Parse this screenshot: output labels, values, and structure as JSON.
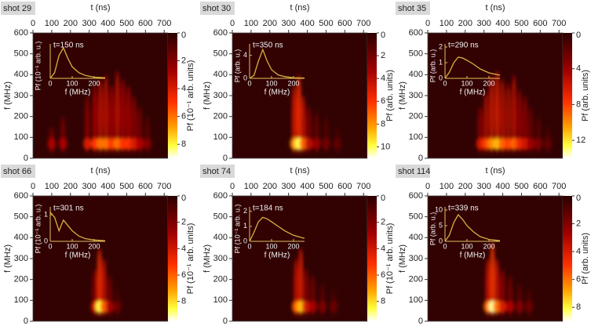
{
  "chart_data": [
    {
      "type": "heatmap",
      "title": "shot 29",
      "xlabel": "t (ns)",
      "ylabel": "f (MHz)",
      "xlim": [
        0,
        720
      ],
      "xticks": [
        0,
        100,
        200,
        300,
        400,
        500,
        600,
        700
      ],
      "ylim": [
        0,
        600
      ],
      "yticks": [
        0,
        100,
        200,
        300,
        400,
        500,
        600
      ],
      "clim": [
        0,
        9
      ],
      "cticks": [
        0,
        2,
        4,
        6,
        8
      ],
      "clabel": "Pf (10⁻¹ arb. units)",
      "bursts": {
        "t": [
          100,
          160,
          290,
          330,
          360,
          390,
          420,
          450,
          480,
          510,
          540,
          570,
          610
        ],
        "f": [
          150,
          200,
          300,
          350,
          380,
          400,
          350,
          420,
          380,
          350,
          300,
          250,
          200
        ],
        "p": [
          3,
          3,
          4,
          5,
          6,
          6,
          5,
          6,
          5,
          5,
          4,
          3,
          2
        ]
      },
      "inset": {
        "type": "line",
        "annotation": "t=150 ns",
        "xlabel": "f (MHz)",
        "ylabel": "Pf (10⁻¹ arb. u.)",
        "xlim": [
          0,
          250
        ],
        "xticks": [
          0,
          100,
          200
        ],
        "ylim": [
          0,
          6
        ],
        "x": [
          0,
          20,
          40,
          60,
          80,
          100,
          130,
          160,
          200,
          250
        ],
        "values": [
          0,
          1,
          4,
          5.3,
          3.5,
          2,
          1,
          0.5,
          0.2,
          0.1
        ],
        "color": "#d8b040"
      }
    },
    {
      "type": "heatmap",
      "title": "shot 30",
      "xlabel": "t (ns)",
      "ylabel": "f (MHz)",
      "xlim": [
        0,
        720
      ],
      "xticks": [
        0,
        100,
        200,
        300,
        400,
        500,
        600,
        700
      ],
      "ylim": [
        0,
        600
      ],
      "yticks": [
        0,
        100,
        200,
        300,
        400,
        500,
        600
      ],
      "clim": [
        0,
        11
      ],
      "cticks": [
        0,
        2,
        4,
        6,
        8,
        10
      ],
      "clabel": "Pf (arb. units)",
      "bursts": {
        "t": [
          330,
          355,
          380,
          410,
          450,
          500,
          560
        ],
        "f": [
          350,
          400,
          300,
          250,
          220,
          200,
          150
        ],
        "p": [
          8,
          10,
          7,
          4,
          3,
          2,
          1.5
        ]
      },
      "inset": {
        "type": "line",
        "annotation": "t=350 ns",
        "xlabel": "f (MHz)",
        "ylabel": "Pf (arb. u.)",
        "xlim": [
          0,
          250
        ],
        "xticks": [
          0,
          100,
          200
        ],
        "ylim": [
          0,
          6
        ],
        "yticks": [
          0,
          4
        ],
        "x": [
          0,
          20,
          40,
          60,
          80,
          100,
          130,
          160,
          200,
          250
        ],
        "values": [
          0,
          0.5,
          3,
          5,
          3,
          1.5,
          0.6,
          0.3,
          0.1,
          0.05
        ],
        "color": "#d8b040"
      }
    },
    {
      "type": "heatmap",
      "title": "shot 35",
      "xlabel": "t (ns)",
      "ylabel": "f (MHz)",
      "xlim": [
        0,
        720
      ],
      "xticks": [
        0,
        100,
        200,
        300,
        400,
        500,
        600,
        700
      ],
      "ylim": [
        0,
        600
      ],
      "yticks": [
        0,
        100,
        200,
        300,
        400,
        500,
        600
      ],
      "clim": [
        0,
        14
      ],
      "cticks": [
        0,
        4,
        8,
        12
      ],
      "clabel": "Pf (arb. units)",
      "bursts": {
        "t": [
          280,
          310,
          340,
          370,
          400,
          430,
          460,
          490,
          520,
          550,
          590,
          640
        ],
        "f": [
          250,
          320,
          400,
          420,
          380,
          360,
          400,
          330,
          300,
          250,
          200,
          150
        ],
        "p": [
          6,
          8,
          10,
          11,
          9,
          8,
          9,
          7,
          6,
          4,
          3,
          2
        ]
      },
      "inset": {
        "type": "line",
        "annotation": "t=290 ns",
        "xlabel": "f (MHz)",
        "ylabel": "Pf (arb. u.)",
        "xlim": [
          0,
          250
        ],
        "xticks": [
          0,
          100,
          200
        ],
        "ylim": [
          0,
          2.2
        ],
        "yticks": [
          0,
          1,
          2
        ],
        "x": [
          0,
          20,
          40,
          60,
          80,
          100,
          130,
          160,
          200,
          250
        ],
        "values": [
          0,
          0.4,
          1,
          1.35,
          1.3,
          1.15,
          0.9,
          0.6,
          0.35,
          0.2
        ],
        "color": "#d8b040"
      }
    },
    {
      "type": "heatmap",
      "title": "shot 66",
      "xlabel": "t (ns)",
      "ylabel": "f (MHz)",
      "xlim": [
        0,
        720
      ],
      "xticks": [
        0,
        100,
        200,
        300,
        400,
        500,
        600,
        700
      ],
      "ylim": [
        0,
        600
      ],
      "yticks": [
        0,
        100,
        200,
        300,
        400,
        500,
        600
      ],
      "clim": [
        0,
        9.5
      ],
      "cticks": [
        0,
        2,
        4,
        6,
        8
      ],
      "clabel": "Pf (10⁻¹ arb. units)",
      "bursts": {
        "t": [
          330,
          355,
          380,
          410,
          450
        ],
        "f": [
          250,
          350,
          300,
          220,
          150
        ],
        "p": [
          4,
          8.5,
          6,
          3,
          1.5
        ]
      },
      "inset": {
        "type": "line",
        "annotation": "t=301 ns",
        "xlabel": "f (MHz)",
        "ylabel": "Pf (10⁻¹ arb. u.)",
        "xlim": [
          0,
          250
        ],
        "xticks": [
          0,
          100,
          200
        ],
        "ylim": [
          0,
          1.3
        ],
        "yticks": [
          0,
          1
        ],
        "x": [
          0,
          20,
          40,
          60,
          80,
          100,
          130,
          160,
          200,
          250
        ],
        "values": [
          1.1,
          0.9,
          0.4,
          0.8,
          0.6,
          0.4,
          0.2,
          0.1,
          0.05,
          0.02
        ],
        "color": "#d8b040"
      }
    },
    {
      "type": "heatmap",
      "title": "shot 74",
      "xlabel": "t (ns)",
      "ylabel": "f (MHz)",
      "xlim": [
        0,
        720
      ],
      "xticks": [
        0,
        100,
        200,
        300,
        400,
        500,
        600,
        700
      ],
      "ylim": [
        0,
        600
      ],
      "yticks": [
        0,
        100,
        200,
        300,
        400,
        500,
        600
      ],
      "clim": [
        0,
        9.5
      ],
      "cticks": [
        0,
        2,
        4,
        6,
        8
      ],
      "clabel": "Pf (10⁻¹ arb. units)",
      "bursts": {
        "t": [
          340,
          365,
          395,
          430,
          480,
          540
        ],
        "f": [
          300,
          350,
          250,
          220,
          180,
          150
        ],
        "p": [
          6,
          7.5,
          4,
          3,
          2,
          1.5
        ]
      },
      "inset": {
        "type": "line",
        "annotation": "t=184 ns",
        "xlabel": "f (MHz)",
        "ylabel": "Pf (10⁻¹ arb. u.)",
        "xlim": [
          0,
          250
        ],
        "xticks": [
          0,
          100,
          200
        ],
        "ylim": [
          0,
          2.3
        ],
        "yticks": [
          0,
          1,
          2
        ],
        "x": [
          0,
          20,
          40,
          60,
          80,
          100,
          130,
          160,
          200,
          250
        ],
        "values": [
          0,
          0.6,
          1.3,
          1.6,
          1.5,
          1.3,
          1,
          0.7,
          0.4,
          0.2
        ],
        "color": "#d8b040"
      }
    },
    {
      "type": "heatmap",
      "title": "shot 114",
      "xlabel": "t (ns)",
      "ylabel": "f (MHz)",
      "xlim": [
        0,
        720
      ],
      "xticks": [
        0,
        100,
        200,
        300,
        400,
        500,
        600,
        700
      ],
      "ylim": [
        0,
        600
      ],
      "yticks": [
        0,
        100,
        200,
        300,
        400,
        500,
        600
      ],
      "clim": [
        0,
        9
      ],
      "cticks": [
        0,
        2,
        4,
        6,
        8
      ],
      "clabel": "Pf (arb. units)",
      "bursts": {
        "t": [
          320,
          345,
          370,
          400,
          440,
          490,
          540
        ],
        "f": [
          300,
          380,
          300,
          250,
          220,
          180,
          150
        ],
        "p": [
          6,
          8.5,
          6,
          4,
          3,
          2,
          1.5
        ]
      },
      "inset": {
        "type": "line",
        "annotation": "t=339 ns",
        "xlabel": "f (MHz)",
        "ylabel": "Pf (arb. u.)",
        "xlim": [
          0,
          250
        ],
        "xticks": [
          0,
          100,
          200
        ],
        "ylim": [
          0,
          11
        ],
        "yticks": [
          0,
          5,
          10
        ],
        "x": [
          0,
          20,
          40,
          60,
          80,
          100,
          130,
          160,
          200,
          250
        ],
        "values": [
          0,
          2,
          6,
          8.5,
          7,
          5,
          3,
          1.5,
          0.6,
          0.2
        ],
        "color": "#d8b040"
      }
    }
  ]
}
